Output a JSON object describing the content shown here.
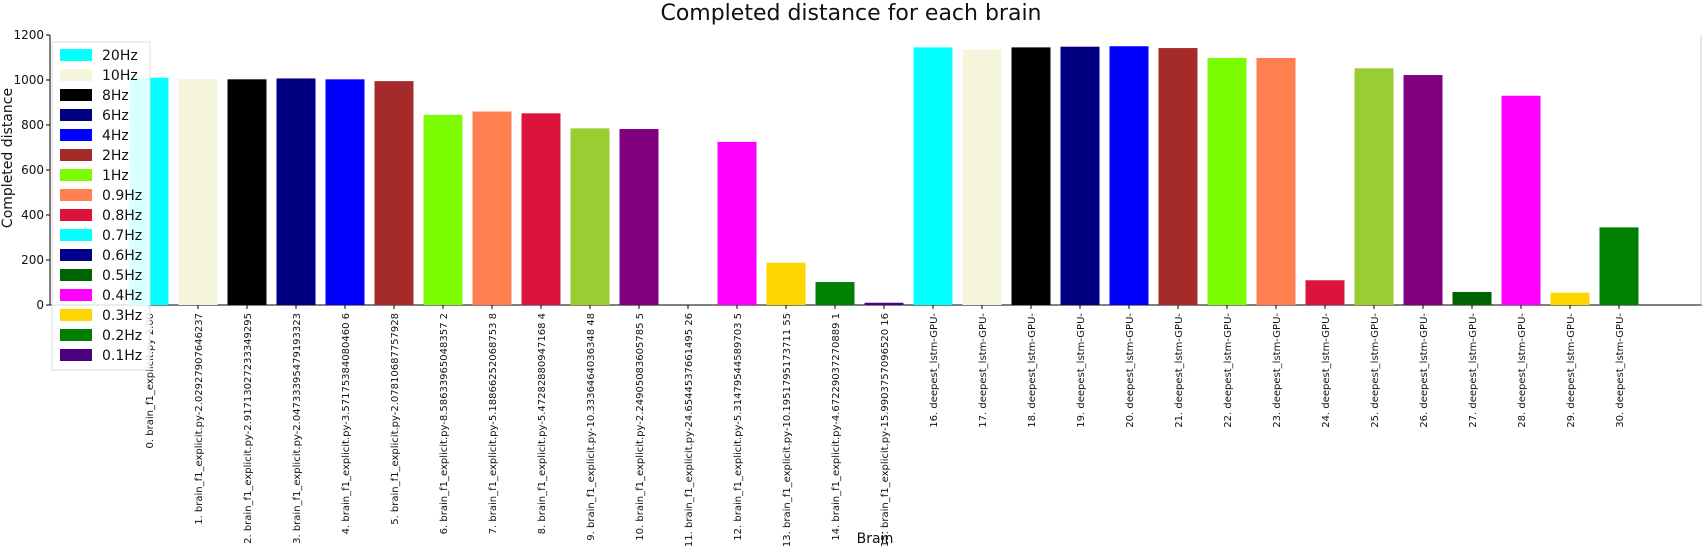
{
  "chart_data": {
    "type": "bar",
    "title": "Completed distance for each brain",
    "xlabel": "Brain",
    "ylabel": "Completed distance",
    "ylim": [
      0,
      1200
    ],
    "yticks": [
      0,
      200,
      400,
      600,
      800,
      1000,
      1200
    ],
    "grid": false,
    "legend_position": "upper-left",
    "legend": [
      {
        "label": "20Hz",
        "color": "#00ffff"
      },
      {
        "label": "10Hz",
        "color": "#f5f5dc"
      },
      {
        "label": "8Hz",
        "color": "#000000"
      },
      {
        "label": "6Hz",
        "color": "#000080"
      },
      {
        "label": "4Hz",
        "color": "#0000ff"
      },
      {
        "label": "2Hz",
        "color": "#a52a2a"
      },
      {
        "label": "1Hz",
        "color": "#7cfc00"
      },
      {
        "label": "0.9Hz",
        "color": "#ff7f50"
      },
      {
        "label": "0.8Hz",
        "color": "#dc143c"
      },
      {
        "label": "0.7Hz",
        "color": "#00ffff"
      },
      {
        "label": "0.6Hz",
        "color": "#00008b"
      },
      {
        "label": "0.5Hz",
        "color": "#006400"
      },
      {
        "label": "0.4Hz",
        "color": "#ff00ff"
      },
      {
        "label": "0.3Hz",
        "color": "#ffd700"
      },
      {
        "label": "0.2Hz",
        "color": "#008000"
      },
      {
        "label": "0.1Hz",
        "color": "#4b0082"
      }
    ],
    "categories": [
      "0. brain_f1_explicit.py-2.00",
      "1. brain_f1_explicit.py-2.02927907646237",
      "2. brain_f1_explicit.py-2.91713027233349295",
      "3. brain_f1_explicit.py-2.04733395479193323",
      "4. brain_f1_explicit.py-3.57175384080460 6",
      "5. brain_f1_explicit.py-2.07810687757928",
      "6. brain_f1_explicit.py-8.58633965048357 2",
      "7. brain_f1_explicit.py-5.18866252068753 8",
      "8. brain_f1_explicit.py-5.47282880947168 4",
      "9. brain_f1_explicit.py-10.3336464036348 48",
      "10. brain_f1_explicit.py-2.24905083605785 5",
      "11. brain_f1_explicit.py-24.6544537661495 26",
      "12. brain_f1_explicit.py-5.31479544589703 5",
      "13. brain_f1_explicit.py-10.1951795173711 55",
      "14. brain_f1_explicit.py-4.67229037270889 1",
      "15. brain_f1_explicit.py-15.9903757096520 16",
      "16. deepest_lstm-GPU-",
      "17. deepest_lstm-GPU-",
      "18. deepest_lstm-GPU-",
      "19. deepest_lstm-GPU-",
      "20. deepest_lstm-GPU-",
      "21. deepest_lstm-GPU-",
      "22. deepest_lstm-GPU-",
      "23. deepest_lstm-GPU-",
      "24. deepest_lstm-GPU-",
      "25. deepest_lstm-GPU-",
      "26. deepest_lstm-GPU-",
      "27. deepest_lstm-GPU-",
      "28. deepest_lstm-GPU-",
      "29. deepest_lstm-GPU-",
      "30. deepest_lstm-GPU-"
    ],
    "values": [
      1010,
      1005,
      1003,
      1007,
      1003,
      995,
      845,
      860,
      852,
      785,
      782,
      0,
      725,
      188,
      102,
      10,
      1145,
      1135,
      1145,
      1148,
      1150,
      1142,
      1098,
      1098,
      110,
      1052,
      1022,
      58,
      930,
      55,
      345
    ],
    "colors": [
      "#00ffff",
      "#f5f5dc",
      "#000000",
      "#000080",
      "#0000ff",
      "#a52a2a",
      "#7cfc00",
      "#ff7f50",
      "#dc143c",
      "#9acd32",
      "#800080",
      "#ffffff",
      "#ff00ff",
      "#ffd700",
      "#008000",
      "#4b0082",
      "#00ffff",
      "#f5f5dc",
      "#000000",
      "#000080",
      "#0000ff",
      "#a52a2a",
      "#7cfc00",
      "#ff7f50",
      "#dc143c",
      "#9acd32",
      "#800080",
      "#006400",
      "#ff00ff",
      "#ffd700",
      "#008000"
    ]
  }
}
